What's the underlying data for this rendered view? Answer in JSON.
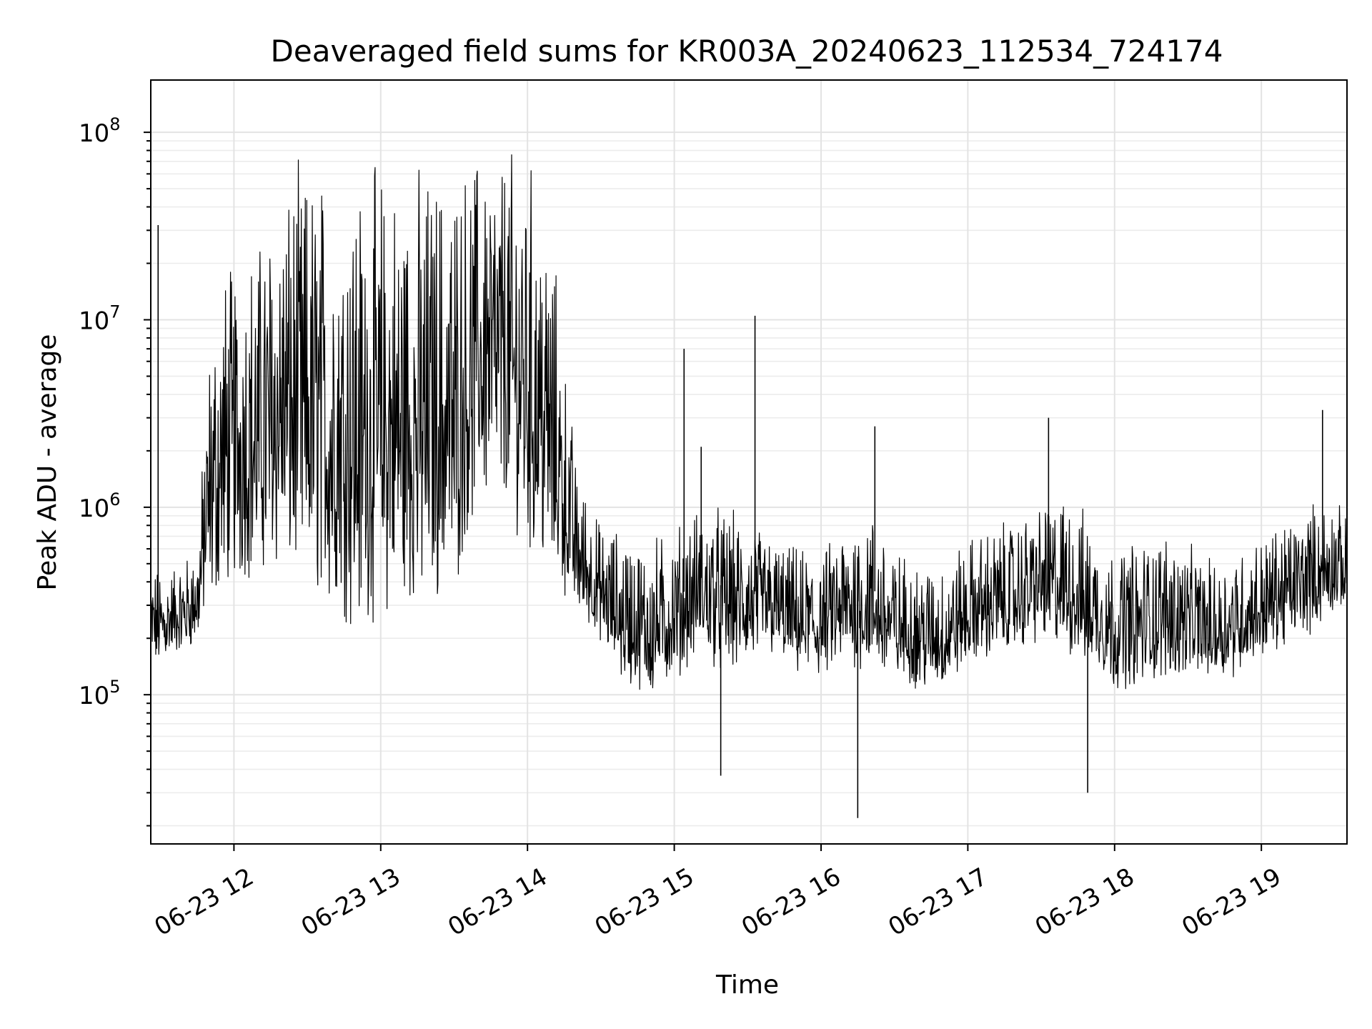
{
  "chart_data": {
    "type": "line",
    "title": "Deaveraged field sums for KR003A_20240623_112534_724174",
    "xlabel": "Time",
    "ylabel": "Peak ADU - average",
    "yscale": "log",
    "ylim": [
      16000,
      190000000
    ],
    "xlim": [
      "2024-06-23 11:26",
      "2024-06-23 19:35"
    ],
    "grid": "major and minor, light gray",
    "legend": "none",
    "line_color": "#000000",
    "x_ticks": [
      {
        "time": "2024-06-23 12:00",
        "label": "06-23 12"
      },
      {
        "time": "2024-06-23 13:00",
        "label": "06-23 13"
      },
      {
        "time": "2024-06-23 14:00",
        "label": "06-23 14"
      },
      {
        "time": "2024-06-23 15:00",
        "label": "06-23 15"
      },
      {
        "time": "2024-06-23 16:00",
        "label": "06-23 16"
      },
      {
        "time": "2024-06-23 17:00",
        "label": "06-23 17"
      },
      {
        "time": "2024-06-23 18:00",
        "label": "06-23 18"
      },
      {
        "time": "2024-06-23 19:00",
        "label": "06-23 19"
      }
    ],
    "y_ticks": [
      {
        "value": 100000,
        "base": "10",
        "exp": "5"
      },
      {
        "value": 1000000,
        "base": "10",
        "exp": "6"
      },
      {
        "value": 10000000,
        "base": "10",
        "exp": "7"
      },
      {
        "value": 100000000,
        "base": "10",
        "exp": "8"
      }
    ],
    "series": [
      {
        "x": [
          "2024-06-23 11:26",
          "2024-06-23 11:30",
          "2024-06-23 11:35",
          "2024-06-23 11:40",
          "2024-06-23 11:45",
          "2024-06-23 11:50",
          "2024-06-23 11:55",
          "2024-06-23 12:00",
          "2024-06-23 12:10",
          "2024-06-23 12:20",
          "2024-06-23 12:30",
          "2024-06-23 12:40",
          "2024-06-23 12:50",
          "2024-06-23 13:00",
          "2024-06-23 13:10",
          "2024-06-23 13:20",
          "2024-06-23 13:30",
          "2024-06-23 13:40",
          "2024-06-23 13:50",
          "2024-06-23 14:00",
          "2024-06-23 14:10",
          "2024-06-23 14:20",
          "2024-06-23 14:30",
          "2024-06-23 14:40",
          "2024-06-23 14:50",
          "2024-06-23 15:00",
          "2024-06-23 15:10",
          "2024-06-23 15:20",
          "2024-06-23 15:30",
          "2024-06-23 15:40",
          "2024-06-23 15:50",
          "2024-06-23 16:00",
          "2024-06-23 16:10",
          "2024-06-23 16:20",
          "2024-06-23 16:30",
          "2024-06-23 16:40",
          "2024-06-23 16:50",
          "2024-06-23 17:00",
          "2024-06-23 17:10",
          "2024-06-23 17:20",
          "2024-06-23 17:30",
          "2024-06-23 17:40",
          "2024-06-23 17:50",
          "2024-06-23 18:00",
          "2024-06-23 18:10",
          "2024-06-23 18:20",
          "2024-06-23 18:30",
          "2024-06-23 18:40",
          "2024-06-23 18:50",
          "2024-06-23 19:00",
          "2024-06-23 19:10",
          "2024-06-23 19:20",
          "2024-06-23 19:30",
          "2024-06-23 19:35"
        ],
        "low": [
          120000,
          140000,
          150000,
          160000,
          180000,
          250000,
          300000,
          320000,
          350000,
          380000,
          300000,
          200000,
          180000,
          200000,
          220000,
          250000,
          280000,
          900000,
          800000,
          500000,
          350000,
          250000,
          180000,
          100000,
          90000,
          110000,
          150000,
          120000,
          130000,
          150000,
          120000,
          110000,
          130000,
          120000,
          110000,
          100000,
          100000,
          130000,
          150000,
          160000,
          180000,
          150000,
          130000,
          100000,
          100000,
          110000,
          120000,
          110000,
          120000,
          150000,
          170000,
          200000,
          250000,
          280000
        ],
        "high": [
          600000,
          500000,
          550000,
          600000,
          700000,
          10000000,
          25000000,
          30000000,
          40000000,
          80000000,
          100000000,
          100000000,
          95000000,
          100000000,
          95000000,
          100000000,
          100000000,
          110000000,
          115000000,
          110000000,
          40000000,
          2000000,
          900000,
          900000,
          800000,
          900000,
          1200000,
          1200000,
          1000000,
          800000,
          700000,
          650000,
          1000000,
          1200000,
          700000,
          600000,
          600000,
          800000,
          900000,
          1000000,
          1200000,
          1500000,
          1000000,
          700000,
          800000,
          900000,
          700000,
          600000,
          700000,
          800000,
          1000000,
          1200000,
          1300000,
          900000
        ],
        "spikes": [
          {
            "time": "2024-06-23 11:29",
            "value": 32000000
          },
          {
            "time": "2024-06-23 15:04",
            "value": 7000000
          },
          {
            "time": "2024-06-23 15:11",
            "value": 2100000
          },
          {
            "time": "2024-06-23 15:33",
            "value": 10500000
          },
          {
            "time": "2024-06-23 16:22",
            "value": 2700000
          },
          {
            "time": "2024-06-23 16:15",
            "value": 22000
          },
          {
            "time": "2024-06-23 17:33",
            "value": 3000000
          },
          {
            "time": "2024-06-23 17:49",
            "value": 30000
          },
          {
            "time": "2024-06-23 19:25",
            "value": 3300000
          },
          {
            "time": "2024-06-23 15:19",
            "value": 37000
          }
        ]
      }
    ]
  }
}
